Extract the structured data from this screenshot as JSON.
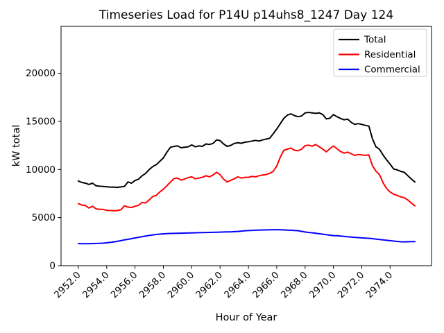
{
  "chart_data": {
    "type": "line",
    "title": "Timeseries Load for P14U p14uhs8_1247  Day 124",
    "xlabel": "Hour of Year",
    "ylabel": "kW total",
    "grid": false,
    "legend_position": "upper right",
    "legend_border_color": "#cccccc",
    "xlim": [
      2950.78,
      2976.92
    ],
    "ylim": [
      0,
      24865
    ],
    "xticks": [
      2952,
      2954,
      2956,
      2958,
      2960,
      2962,
      2964,
      2966,
      2968,
      2970,
      2972,
      2974
    ],
    "xtick_labels": [
      "2952.0",
      "2954.0",
      "2956.0",
      "2958.0",
      "2960.0",
      "2962.0",
      "2964.0",
      "2966.0",
      "2968.0",
      "2970.0",
      "2972.0",
      "2974.0"
    ],
    "xtick_rotation_deg": 45,
    "yticks": [
      0,
      5000,
      10000,
      15000,
      20000
    ],
    "ytick_labels": [
      "0",
      "5000",
      "10000",
      "15000",
      "20000"
    ],
    "x_start": 2952.0,
    "x_step": 0.25,
    "x_end": 2975.75,
    "series": [
      {
        "name": "Total",
        "color": "#000000",
        "values": [
          8800,
          8650,
          8580,
          8440,
          8580,
          8300,
          8260,
          8240,
          8200,
          8170,
          8160,
          8140,
          8190,
          8240,
          8700,
          8580,
          8850,
          8990,
          9350,
          9600,
          10000,
          10300,
          10500,
          10850,
          11200,
          11800,
          12300,
          12400,
          12450,
          12250,
          12300,
          12350,
          12550,
          12350,
          12450,
          12400,
          12650,
          12600,
          12700,
          13070,
          13000,
          12650,
          12400,
          12500,
          12700,
          12780,
          12720,
          12830,
          12880,
          12950,
          13020,
          12950,
          13070,
          13150,
          13240,
          13700,
          14200,
          14750,
          15300,
          15650,
          15780,
          15600,
          15480,
          15550,
          15880,
          15930,
          15880,
          15830,
          15880,
          15700,
          15250,
          15320,
          15700,
          15480,
          15300,
          15160,
          15230,
          14900,
          14680,
          14760,
          14680,
          14580,
          14510,
          13200,
          12350,
          12100,
          11500,
          11000,
          10550,
          10050,
          9950,
          9800,
          9700,
          9350,
          9000,
          8700
        ]
      },
      {
        "name": "Residential",
        "color": "#ff0000",
        "values": [
          6450,
          6300,
          6250,
          6000,
          6180,
          5900,
          5860,
          5850,
          5750,
          5740,
          5700,
          5740,
          5800,
          6220,
          6100,
          6050,
          6180,
          6270,
          6580,
          6520,
          6830,
          7190,
          7300,
          7660,
          7950,
          8300,
          8700,
          9050,
          9100,
          8900,
          9000,
          9150,
          9230,
          9030,
          9100,
          9180,
          9350,
          9230,
          9420,
          9700,
          9460,
          8990,
          8700,
          8870,
          9030,
          9230,
          9100,
          9180,
          9180,
          9280,
          9230,
          9350,
          9420,
          9470,
          9590,
          9800,
          10350,
          11270,
          11990,
          12110,
          12230,
          11990,
          11940,
          12110,
          12470,
          12520,
          12420,
          12590,
          12350,
          12110,
          11830,
          12150,
          12440,
          12150,
          11870,
          11700,
          11800,
          11630,
          11460,
          11550,
          11510,
          11460,
          11510,
          10400,
          9820,
          9470,
          8630,
          8020,
          7660,
          7420,
          7300,
          7150,
          7060,
          6820,
          6500,
          6220
        ]
      },
      {
        "name": "Commercial",
        "color": "#0000ff",
        "values": [
          2300,
          2290,
          2290,
          2290,
          2300,
          2310,
          2320,
          2340,
          2380,
          2420,
          2470,
          2530,
          2600,
          2680,
          2740,
          2810,
          2880,
          2950,
          3020,
          3080,
          3140,
          3200,
          3250,
          3280,
          3310,
          3330,
          3350,
          3360,
          3370,
          3380,
          3390,
          3400,
          3410,
          3420,
          3430,
          3440,
          3450,
          3460,
          3470,
          3480,
          3490,
          3500,
          3510,
          3520,
          3540,
          3560,
          3600,
          3630,
          3650,
          3670,
          3690,
          3700,
          3710,
          3720,
          3730,
          3740,
          3740,
          3730,
          3720,
          3700,
          3680,
          3660,
          3640,
          3570,
          3500,
          3450,
          3420,
          3370,
          3320,
          3270,
          3220,
          3170,
          3130,
          3110,
          3080,
          3040,
          3010,
          2980,
          2950,
          2920,
          2890,
          2870,
          2850,
          2810,
          2770,
          2720,
          2680,
          2640,
          2600,
          2560,
          2520,
          2490,
          2480,
          2490,
          2500,
          2500
        ]
      }
    ]
  }
}
